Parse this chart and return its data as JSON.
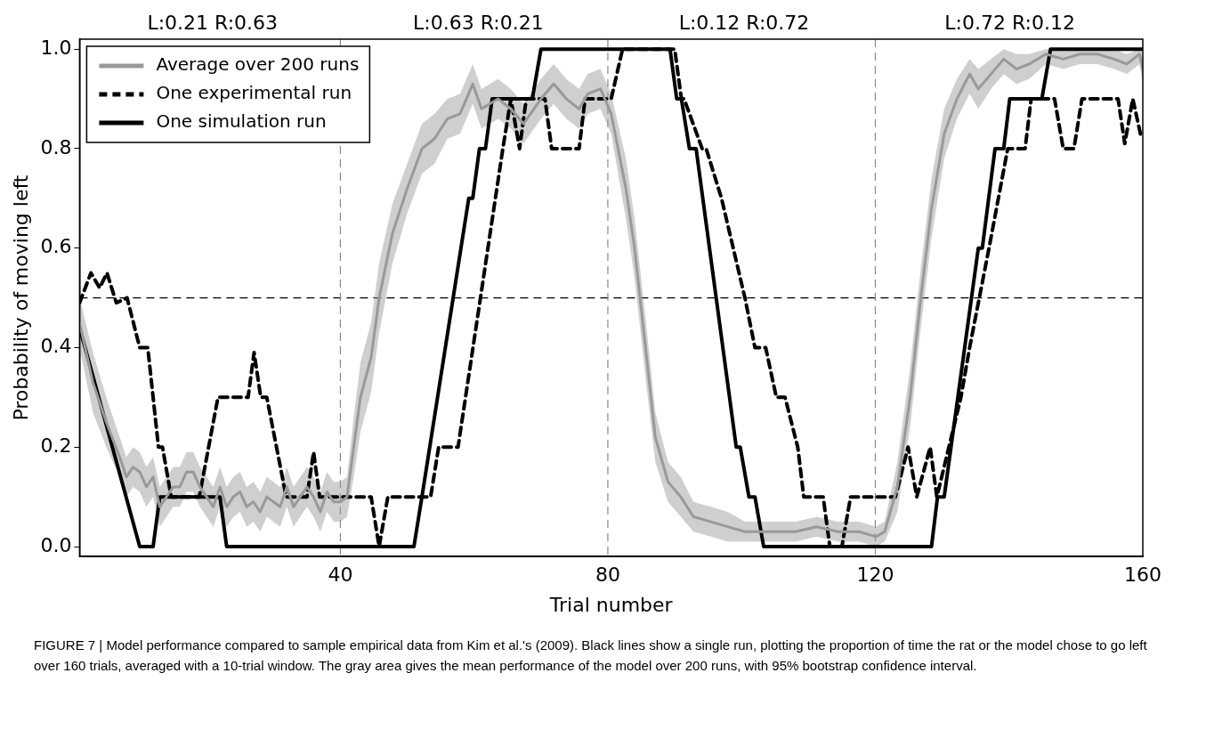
{
  "chart_data": {
    "type": "line",
    "xlabel": "Trial number",
    "ylabel": "Probability of moving left",
    "xlim": [
      1,
      160
    ],
    "xticks": [
      40,
      80,
      120,
      160
    ],
    "ylim": [
      -0.02,
      1.02
    ],
    "yticks": [
      {
        "value": 0,
        "label": "0.0"
      },
      {
        "value": 0.2,
        "label": "0.2"
      },
      {
        "value": 0.4,
        "label": "0.4"
      },
      {
        "value": 0.6,
        "label": "0.6"
      },
      {
        "value": 0.8,
        "label": "0.8"
      },
      {
        "value": 1,
        "label": "1.0"
      }
    ],
    "grid": false,
    "legend": "top left",
    "series": [
      {
        "name": "Average over 200 runs",
        "color": "#999999",
        "line_style": "solid",
        "x": [
          1,
          3,
          5,
          7,
          8,
          9,
          10,
          11,
          12,
          13,
          14,
          15,
          16,
          17,
          18,
          19,
          20,
          21,
          22,
          23,
          24,
          25,
          26,
          27,
          28,
          29,
          30,
          31,
          32,
          33,
          34,
          35,
          36,
          37,
          38,
          39,
          40,
          41,
          42,
          43,
          44.6,
          45.8,
          47.8,
          50,
          52.2,
          54.1,
          56,
          57.9,
          59.8,
          61.1,
          63.6,
          65.5,
          67.4,
          70,
          71.9,
          73.8,
          75.7,
          77,
          78.9,
          80.5,
          82.7,
          84,
          85.8,
          87.1,
          89,
          90.9,
          92.8,
          95.4,
          97.9,
          100.5,
          103,
          104.9,
          108.1,
          111.2,
          114.4,
          117.6,
          120.1,
          121.4,
          123.3,
          125.2,
          126.8,
          128.4,
          130.3,
          132.2,
          134.1,
          135.4,
          137.3,
          139.2,
          141.1,
          143,
          145.5,
          148.1,
          150.6,
          153.2,
          155.7,
          157.6,
          159.5,
          160
        ],
        "values": [
          0.45,
          0.33,
          0.25,
          0.18,
          0.14,
          0.16,
          0.15,
          0.12,
          0.14,
          0.08,
          0.1,
          0.12,
          0.12,
          0.15,
          0.15,
          0.12,
          0.1,
          0.08,
          0.12,
          0.08,
          0.1,
          0.11,
          0.08,
          0.09,
          0.07,
          0.1,
          0.09,
          0.08,
          0.12,
          0.08,
          0.1,
          0.12,
          0.1,
          0.07,
          0.11,
          0.09,
          0.09,
          0.1,
          0.2,
          0.3,
          0.38,
          0.5,
          0.63,
          0.72,
          0.8,
          0.82,
          0.86,
          0.87,
          0.93,
          0.88,
          0.9,
          0.88,
          0.85,
          0.9,
          0.93,
          0.9,
          0.88,
          0.91,
          0.92,
          0.87,
          0.72,
          0.6,
          0.38,
          0.22,
          0.13,
          0.1,
          0.06,
          0.05,
          0.04,
          0.03,
          0.03,
          0.03,
          0.03,
          0.04,
          0.03,
          0.03,
          0.02,
          0.03,
          0.12,
          0.3,
          0.5,
          0.68,
          0.83,
          0.9,
          0.95,
          0.92,
          0.95,
          0.98,
          0.96,
          0.97,
          0.99,
          0.98,
          0.99,
          0.99,
          0.98,
          0.97,
          0.99,
          0.96
        ],
        "lower": [
          0.4,
          0.27,
          0.2,
          0.14,
          0.1,
          0.12,
          0.11,
          0.08,
          0.1,
          0.04,
          0.06,
          0.08,
          0.08,
          0.11,
          0.11,
          0.08,
          0.06,
          0.04,
          0.08,
          0.04,
          0.06,
          0.07,
          0.04,
          0.05,
          0.03,
          0.06,
          0.05,
          0.04,
          0.08,
          0.04,
          0.06,
          0.08,
          0.06,
          0.03,
          0.07,
          0.05,
          0.05,
          0.06,
          0.14,
          0.23,
          0.31,
          0.43,
          0.57,
          0.67,
          0.75,
          0.77,
          0.82,
          0.83,
          0.89,
          0.84,
          0.86,
          0.84,
          0.81,
          0.86,
          0.89,
          0.86,
          0.84,
          0.87,
          0.88,
          0.83,
          0.66,
          0.54,
          0.32,
          0.17,
          0.09,
          0.06,
          0.03,
          0.02,
          0.01,
          0.01,
          0.01,
          0.01,
          0.01,
          0.02,
          0.01,
          0.01,
          0.0,
          0.01,
          0.07,
          0.24,
          0.44,
          0.62,
          0.78,
          0.86,
          0.91,
          0.88,
          0.92,
          0.95,
          0.93,
          0.94,
          0.97,
          0.96,
          0.97,
          0.97,
          0.96,
          0.95,
          0.97,
          0.93
        ],
        "upper": [
          0.5,
          0.39,
          0.3,
          0.22,
          0.18,
          0.2,
          0.19,
          0.16,
          0.18,
          0.12,
          0.14,
          0.16,
          0.16,
          0.19,
          0.19,
          0.16,
          0.14,
          0.12,
          0.16,
          0.12,
          0.14,
          0.15,
          0.12,
          0.13,
          0.11,
          0.14,
          0.13,
          0.12,
          0.16,
          0.12,
          0.14,
          0.16,
          0.14,
          0.11,
          0.15,
          0.13,
          0.13,
          0.14,
          0.26,
          0.37,
          0.45,
          0.57,
          0.69,
          0.77,
          0.85,
          0.87,
          0.9,
          0.91,
          0.97,
          0.92,
          0.94,
          0.92,
          0.89,
          0.94,
          0.97,
          0.94,
          0.92,
          0.95,
          0.96,
          0.91,
          0.78,
          0.66,
          0.44,
          0.27,
          0.17,
          0.14,
          0.09,
          0.08,
          0.07,
          0.05,
          0.05,
          0.05,
          0.05,
          0.06,
          0.05,
          0.05,
          0.04,
          0.05,
          0.17,
          0.36,
          0.56,
          0.74,
          0.88,
          0.94,
          0.98,
          0.96,
          0.98,
          1.0,
          0.99,
          0.99,
          1.0,
          1.0,
          1.0,
          1.0,
          1.0,
          0.99,
          1.0,
          0.99
        ]
      },
      {
        "name": "One experimental run",
        "color": "#000000",
        "line_style": "dashed",
        "x": [
          1,
          2.7,
          4,
          5.1,
          6.5,
          8.1,
          10,
          11.2,
          12.8,
          13.4,
          14.7,
          18.9,
          21.7,
          26.2,
          27.1,
          28.1,
          29,
          31.9,
          35,
          36,
          36.9,
          44.6,
          45.8,
          47.1,
          53.5,
          54.7,
          57.6,
          64.3,
          65.5,
          66.8,
          67.8,
          70.6,
          71.6,
          75.7,
          76.6,
          80.5,
          82.2,
          90,
          91,
          91.4,
          94.1,
          94.7,
          97,
          100.5,
          102,
          103.6,
          105.2,
          106.5,
          108.4,
          109.3,
          112.2,
          113.2,
          115,
          116.3,
          123,
          124.9,
          126.2,
          128.2,
          129.2,
          132.8,
          134.1,
          137,
          139.8,
          142.4,
          143.3,
          146.8,
          148.1,
          149.7,
          150.9,
          156.3,
          157.3,
          158.5,
          159.8
        ],
        "values": [
          0.49,
          0.55,
          0.52,
          0.55,
          0.49,
          0.5,
          0.4,
          0.4,
          0.2,
          0.2,
          0.1,
          0.1,
          0.3,
          0.3,
          0.39,
          0.3,
          0.3,
          0.1,
          0.1,
          0.19,
          0.1,
          0.1,
          0.0,
          0.1,
          0.1,
          0.2,
          0.2,
          0.8,
          0.9,
          0.8,
          0.9,
          0.9,
          0.8,
          0.8,
          0.9,
          0.9,
          1.0,
          1.0,
          0.9,
          0.9,
          0.8,
          0.8,
          0.7,
          0.5,
          0.4,
          0.4,
          0.3,
          0.3,
          0.2,
          0.1,
          0.1,
          0.0,
          0.0,
          0.1,
          0.1,
          0.2,
          0.1,
          0.2,
          0.1,
          0.3,
          0.4,
          0.6,
          0.8,
          0.8,
          0.9,
          0.9,
          0.8,
          0.8,
          0.9,
          0.9,
          0.81,
          0.9,
          0.82
        ]
      },
      {
        "name": "One simulation run",
        "color": "#000000",
        "line_style": "solid",
        "x": [
          1,
          10,
          12,
          13,
          22,
          23,
          51,
          52.2,
          59.2,
          59.8,
          60.8,
          61.7,
          62.7,
          68.7,
          70,
          89.3,
          90.3,
          91,
          92.2,
          93.2,
          99.2,
          99.8,
          101.1,
          102,
          103.3,
          128.4,
          129.3,
          130.3,
          135.4,
          136,
          137.9,
          139.2,
          140.1,
          144.9,
          146.2,
          160
        ],
        "values": [
          0.44,
          0,
          0,
          0.1,
          0.1,
          0,
          0,
          0.1,
          0.7,
          0.7,
          0.8,
          0.8,
          0.9,
          0.9,
          1.0,
          1.0,
          0.9,
          0.9,
          0.8,
          0.8,
          0.2,
          0.2,
          0.1,
          0.1,
          0,
          0,
          0.1,
          0.1,
          0.6,
          0.6,
          0.8,
          0.8,
          0.9,
          0.9,
          1.0,
          1.0
        ]
      }
    ],
    "ref_lines": [
      {
        "axis": "y",
        "value": 0.5,
        "color": "#000000",
        "line_style": "dashed"
      },
      {
        "axis": "x",
        "value": 40,
        "color": "#888888",
        "line_style": "dashed"
      },
      {
        "axis": "x",
        "value": 80,
        "color": "#888888",
        "line_style": "dashed"
      },
      {
        "axis": "x",
        "value": 120,
        "color": "#888888",
        "line_style": "dashed"
      }
    ],
    "annotations": [
      "L:0.21 R:0.63",
      "L:0.63 R:0.21",
      "L:0.12 R:0.72",
      "L:0.72 R:0.12",
      "FIGURE 7 | Model performance compared to sample empirical data from Kim et al.'s (2009). Black lines show a single run, plotting the proportion of time the rat or the model chose to go left over 160 trials, averaged with a 10-trial window. The gray area gives the mean performance of the model over 200 runs, with 95% bootstrap confidence interval."
    ]
  }
}
